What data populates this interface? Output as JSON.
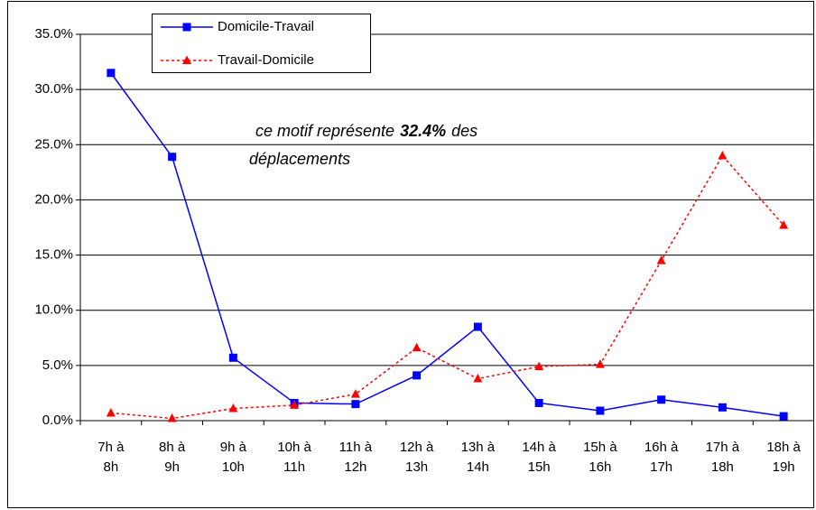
{
  "chart_data": {
    "type": "line",
    "categories": [
      "7h à 8h",
      "8h à 9h",
      "9h à 10h",
      "10h à 11h",
      "11h à 12h",
      "12h à 13h",
      "13h à 14h",
      "14h à 15h",
      "15h à 16h",
      "16h à 17h",
      "17h à 18h",
      "18h à 19h"
    ],
    "series": [
      {
        "name": "Domicile-Travail",
        "color": "#0000ff",
        "marker": "square",
        "dashed": false,
        "values": [
          31.5,
          23.9,
          5.7,
          1.6,
          1.5,
          4.1,
          8.5,
          1.6,
          0.9,
          1.9,
          1.2,
          0.4
        ]
      },
      {
        "name": "Travail-Domicile",
        "color": "#ff0000",
        "marker": "triangle",
        "dashed": true,
        "values": [
          0.7,
          0.2,
          1.1,
          1.4,
          2.4,
          6.6,
          3.8,
          4.9,
          5.1,
          14.5,
          24.0,
          17.7
        ]
      }
    ],
    "ylim": [
      0,
      35
    ],
    "yticks": [
      {
        "value": 0,
        "label": "0.0%"
      },
      {
        "value": 5,
        "label": "5.0%"
      },
      {
        "value": 10,
        "label": "10.0%"
      },
      {
        "value": 15,
        "label": "15.0%"
      },
      {
        "value": 20,
        "label": "20.0%"
      },
      {
        "value": 25,
        "label": "25.0%"
      },
      {
        "value": 30,
        "label": "30.0%"
      },
      {
        "value": 35,
        "label": "35.0%"
      }
    ],
    "grid": true,
    "legend": "top-left",
    "annotation": {
      "text": "ce motif représente",
      "highlight": "32.4%",
      "text_end": "des déplacements"
    }
  }
}
